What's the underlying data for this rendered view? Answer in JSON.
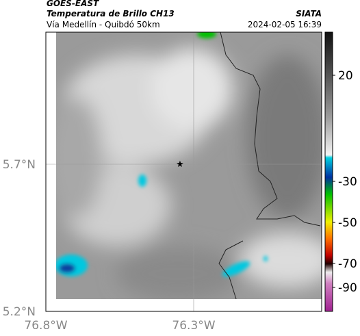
{
  "header": {
    "satellite": "GOES-EAST",
    "product": "Temperatura de Brillo CH13",
    "region": "Vía Medellín - Quibdó 50km",
    "source": "SIATA",
    "timestamp": "2024-02-05 16:39"
  },
  "map": {
    "lat_labels": [
      "5.7°N",
      "5.2°N"
    ],
    "lon_labels": [
      "76.8°W",
      "76.3°W"
    ]
  },
  "colorbar": {
    "ticks": [
      20,
      -30,
      -50,
      -70,
      -90
    ]
  }
}
